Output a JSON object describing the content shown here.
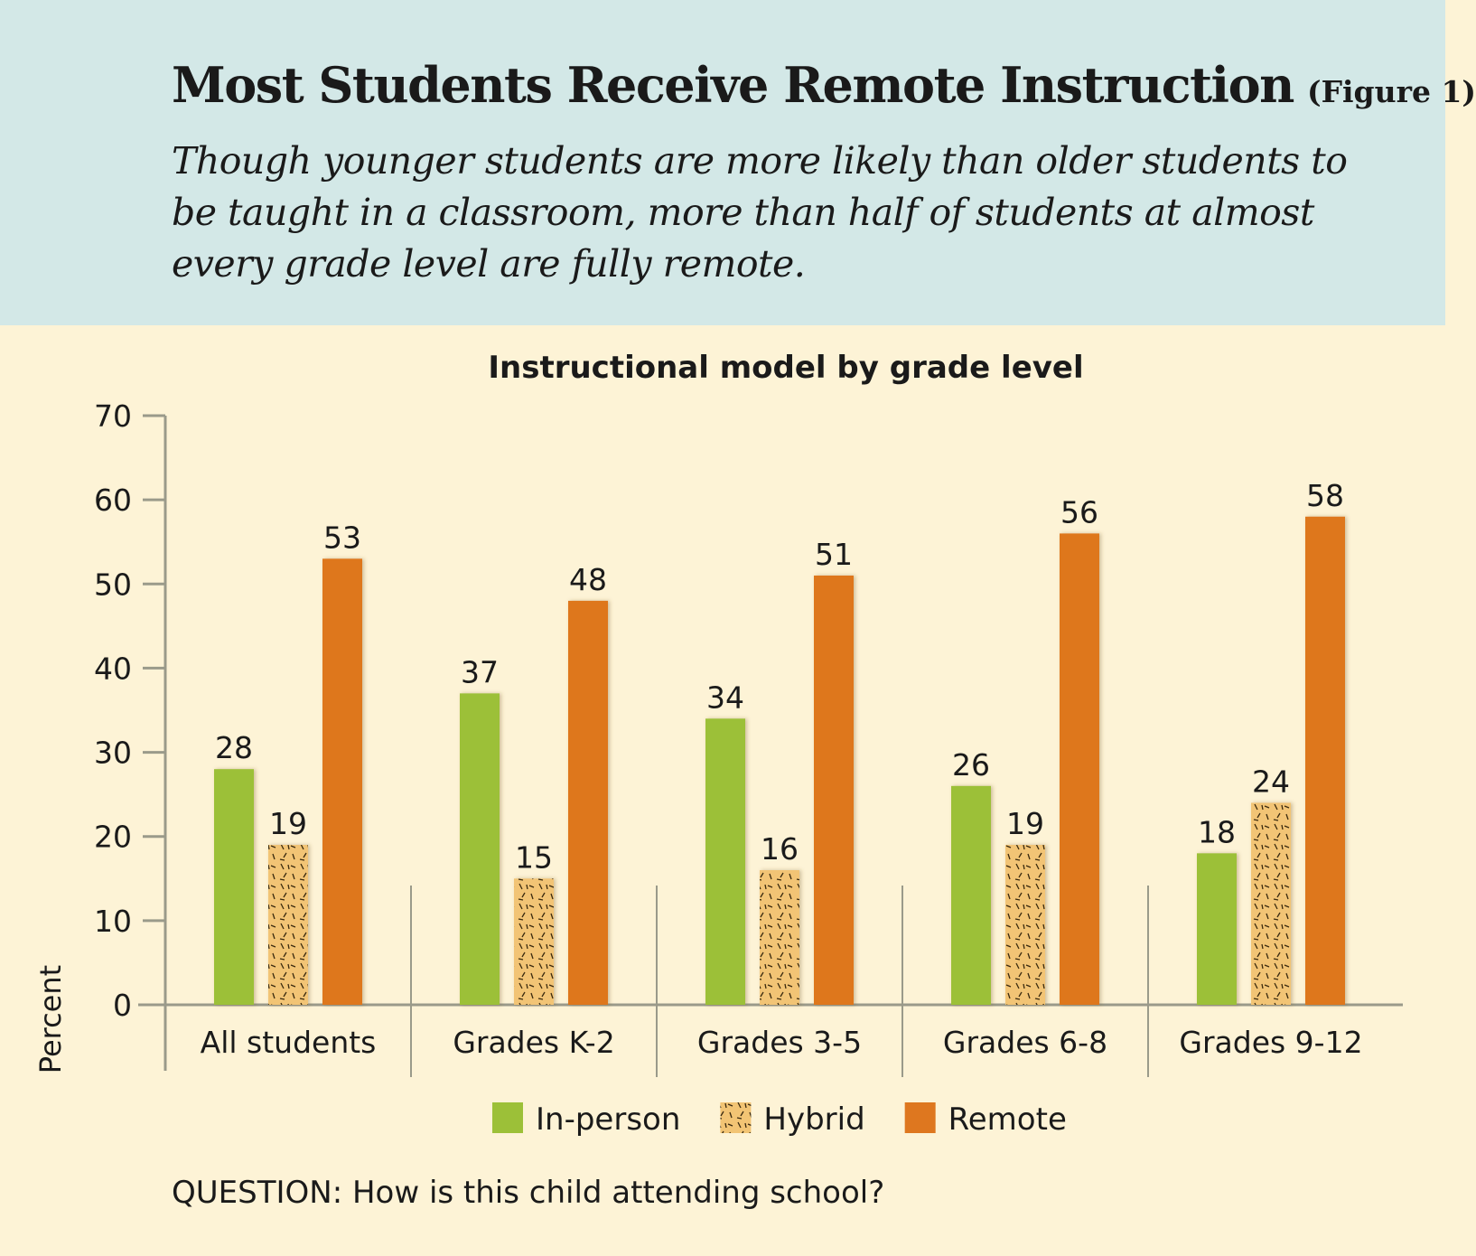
{
  "header": {
    "title": "Most Students Receive Remote Instruction",
    "figure_label": "(Figure 1)",
    "subtitle": "Though younger students are more likely than older students to be taught in a classroom, more than half of students at almost every grade level are fully remote."
  },
  "chart_data": {
    "type": "bar",
    "title": "Instructional model by grade level",
    "xlabel": "",
    "ylabel": "Percent",
    "ylim": [
      0,
      70
    ],
    "yticks": [
      0,
      10,
      20,
      30,
      40,
      50,
      60,
      70
    ],
    "categories": [
      "All students",
      "Grades K-2",
      "Grades 3-5",
      "Grades 6-8",
      "Grades 9-12"
    ],
    "series": [
      {
        "name": "In-person",
        "values": [
          28,
          37,
          34,
          26,
          18
        ],
        "color": "#9cc038"
      },
      {
        "name": "Hybrid",
        "values": [
          19,
          15,
          16,
          19,
          24
        ],
        "color": "#f2c474",
        "pattern": "hatch"
      },
      {
        "name": "Remote",
        "values": [
          53,
          48,
          51,
          56,
          58
        ],
        "color": "#de771f"
      }
    ],
    "legend_placement": "bottom-center",
    "grid": false
  },
  "footer": {
    "question": "QUESTION: How is this child attending school?"
  }
}
